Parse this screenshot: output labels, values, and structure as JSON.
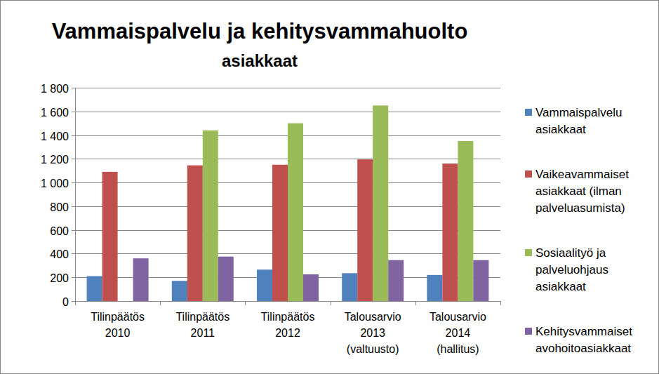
{
  "chart_data": {
    "type": "bar",
    "title": "Vammaispalvelu ja kehitysvammahuolto",
    "subtitle": "asiakkaat",
    "categories": [
      "Tilinpäätös 2010",
      "Tilinpäätös 2011",
      "Tilinpäätös 2012",
      "Talousarvio 2013 (valtuusto)",
      "Talousarvio 2014 (hallitus)"
    ],
    "series": [
      {
        "name": "Vammaispalvelu asiakkaat",
        "color": "#4f81bd",
        "values": [
          210,
          170,
          265,
          235,
          220
        ]
      },
      {
        "name": "Vaikeavammaiset asiakkaat (ilman palveluasumista)",
        "color": "#c0504d",
        "values": [
          1090,
          1145,
          1150,
          1195,
          1160
        ]
      },
      {
        "name": "Sosiaalityö ja palveluohjaus asiakkaat",
        "color": "#9bbb59",
        "values": [
          null,
          1440,
          1500,
          1650,
          1350
        ]
      },
      {
        "name": "Kehitysvammaiset avohoitoasiakkaat",
        "color": "#8064a2",
        "values": [
          360,
          375,
          225,
          345,
          345
        ]
      }
    ],
    "ylim": [
      0,
      1800
    ],
    "yticks": [
      0,
      200,
      400,
      600,
      800,
      {
        "value": 1000,
        "label": "1 000"
      },
      {
        "value": 1200,
        "label": "1 200"
      },
      {
        "value": 1400,
        "label": "1 400"
      },
      {
        "value": 1600,
        "label": "1 600"
      },
      {
        "value": 1800,
        "label": "1 800"
      }
    ],
    "grid": true,
    "legend": "right"
  }
}
